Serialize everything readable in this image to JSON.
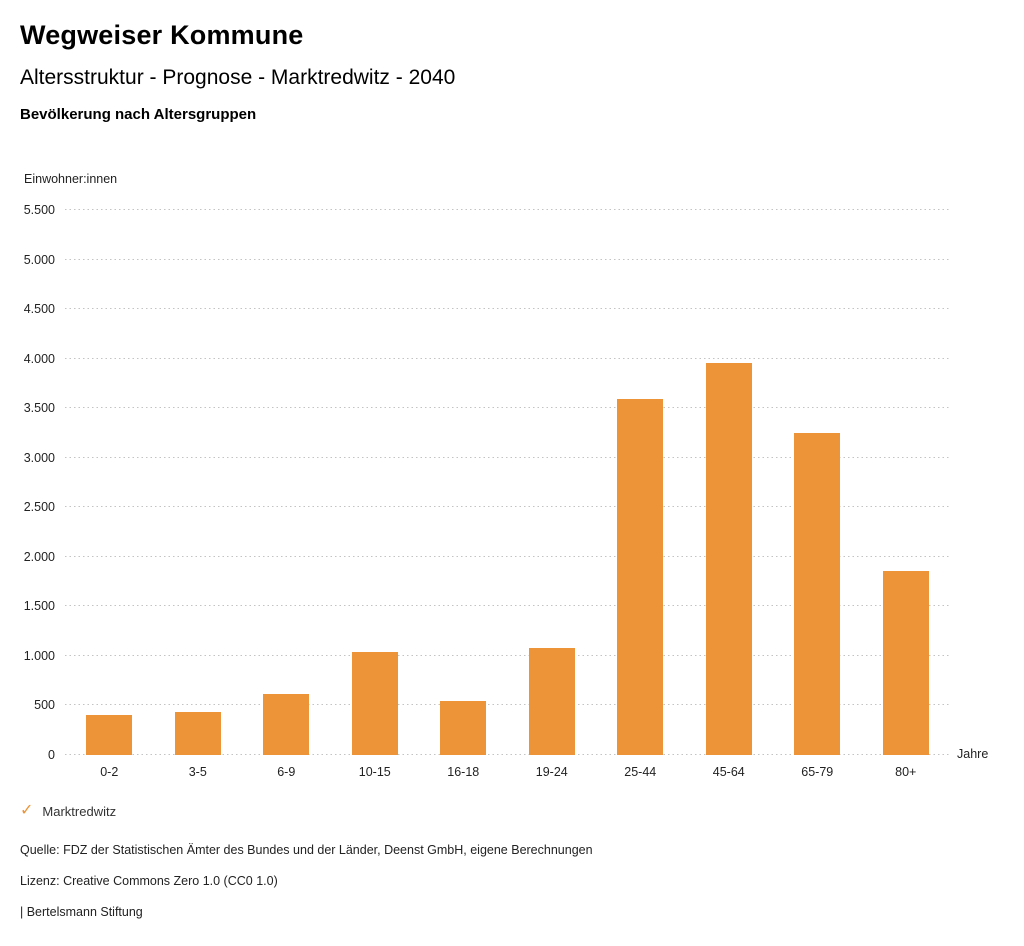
{
  "header": {
    "title": "Wegweiser Kommune",
    "subtitle": "Altersstruktur - Prognose - Marktredwitz - 2040",
    "caption": "Bevölkerung nach Altersgruppen"
  },
  "chart_data": {
    "type": "bar",
    "title": "Altersstruktur - Prognose - Marktredwitz - 2040",
    "subtitle": "Bevölkerung nach Altersgruppen",
    "categories": [
      "0-2",
      "3-5",
      "6-9",
      "10-15",
      "16-18",
      "19-24",
      "25-44",
      "45-64",
      "65-79",
      "80+"
    ],
    "values": [
      400,
      430,
      620,
      1040,
      550,
      1080,
      3590,
      3960,
      3250,
      1855
    ],
    "series_name": "Marktredwitz",
    "xlabel": "Jahre",
    "ylabel": "Einwohner:innen",
    "ylim": [
      0,
      5500
    ],
    "ytick_step": 500,
    "yticks": [
      "0",
      "500",
      "1.000",
      "1.500",
      "2.000",
      "2.500",
      "3.000",
      "3.500",
      "4.000",
      "4.500",
      "5.000",
      "5.500"
    ],
    "grid": "horizontal-dotted",
    "legend_position": "bottom-left",
    "bar_color": "#EC9437"
  },
  "legend": {
    "check_icon": "✓",
    "label": "Marktredwitz"
  },
  "footer": {
    "source": "Quelle: FDZ der Statistischen Ämter des Bundes und der Länder, Deenst GmbH, eigene Berechnungen",
    "license": "Lizenz: Creative Commons Zero 1.0 (CC0 1.0)",
    "attribution": "| Bertelsmann Stiftung"
  }
}
